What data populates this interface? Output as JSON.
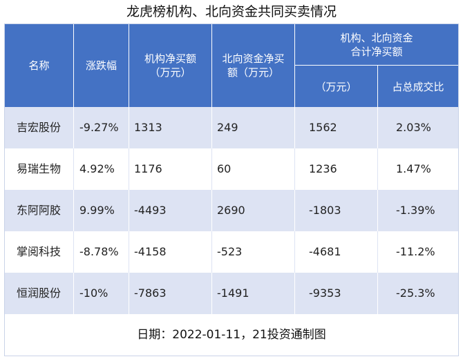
{
  "title": "龙虎榜机构、北向资金共同买卖情况",
  "headers": {
    "name": "名称",
    "change": "涨跌幅",
    "inst_line1": "机构净买额",
    "inst_line2": "（万元）",
    "north_line1": "北向资金净买",
    "north_line2": "额（万元）",
    "combined_line1": "机构、北向资金",
    "combined_line2": "合计净买额",
    "combined_unit": "（万元）",
    "share": "占总成交比"
  },
  "rows": [
    {
      "name": "吉宏股份",
      "change": "-9.27%",
      "inst": "1313",
      "north": "249",
      "total": "1562",
      "share": "2.03%"
    },
    {
      "name": "易瑞生物",
      "change": "4.92%",
      "inst": "1176",
      "north": "60",
      "total": "1236",
      "share": "1.47%"
    },
    {
      "name": "东阿阿胶",
      "change": "9.99%",
      "inst": "-4493",
      "north": "2690",
      "total": "-1803",
      "share": "-1.39%"
    },
    {
      "name": "掌阅科技",
      "change": "-8.78%",
      "inst": "-4158",
      "north": "-523",
      "total": "-4681",
      "share": "-11.2%"
    },
    {
      "name": "恒润股份",
      "change": "-10%",
      "inst": "-7863",
      "north": "-1491",
      "total": "-9353",
      "share": "-25.3%"
    }
  ],
  "footer": "日期：2022-01-11，21投资通制图"
}
